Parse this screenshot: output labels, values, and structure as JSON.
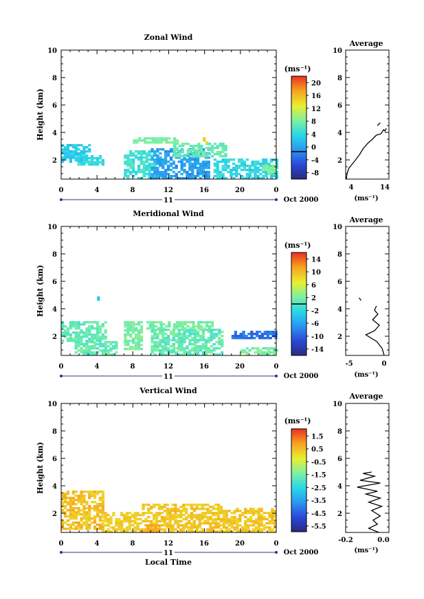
{
  "figure": {
    "date_label": "Oct 2000",
    "day_label": "11",
    "x_axis_label": "Local Time",
    "y_axis_label": "Height (km)",
    "average_title": "Average",
    "unit_label": "(ms⁻¹)",
    "x_ticks": [
      "0",
      "4",
      "8",
      "12",
      "16",
      "20",
      "0"
    ],
    "y_ticks": [
      "2",
      "4",
      "6",
      "8",
      "10"
    ]
  },
  "chart_data": [
    {
      "type": "heatmap",
      "title": "Zonal Wind",
      "xlabel": "",
      "ylabel": "Height (km)",
      "xlim": [
        0,
        24
      ],
      "ylim": [
        0.6,
        10
      ],
      "colorbar": {
        "unit": "(ms⁻¹)",
        "min": -8,
        "max": 22,
        "ticks": [
          "20",
          "16",
          "12",
          "8",
          "4",
          "0",
          "-4",
          "-8"
        ],
        "zero_line": 0
      },
      "blobs": [
        {
          "x0": 0.0,
          "x1": 3.0,
          "y0": 1.8,
          "y1": 3.0,
          "value": 4,
          "spread": 3
        },
        {
          "x0": 1.5,
          "x1": 4.5,
          "y0": 1.6,
          "y1": 2.3,
          "value": 5,
          "spread": 3
        },
        {
          "x0": 7.0,
          "x1": 10.5,
          "y0": 0.6,
          "y1": 2.6,
          "value": 6,
          "spread": 3
        },
        {
          "x0": 10.0,
          "x1": 16.5,
          "y0": 0.6,
          "y1": 2.8,
          "value": 1,
          "spread": 3
        },
        {
          "x0": 12.5,
          "x1": 18.5,
          "y0": 2.2,
          "y1": 3.2,
          "value": 8,
          "spread": 2
        },
        {
          "x0": 8.0,
          "x1": 13.0,
          "y0": 3.2,
          "y1": 3.6,
          "value": 9,
          "spread": 1
        },
        {
          "x0": 15.8,
          "x1": 16.4,
          "y0": 3.2,
          "y1": 3.6,
          "value": 15,
          "spread": 1
        },
        {
          "x0": 17.0,
          "x1": 24.0,
          "y0": 0.6,
          "y1": 2.0,
          "value": 5,
          "spread": 3
        },
        {
          "x0": 22.5,
          "x1": 24.0,
          "y0": 0.9,
          "y1": 1.6,
          "value": 9,
          "spread": 2
        }
      ],
      "average_profile": {
        "xlim": [
          2,
          15
        ],
        "x_ticks": [
          "4",
          "14"
        ],
        "points": [
          [
            2.2,
            0.6
          ],
          [
            2.4,
            1.0
          ],
          [
            3.0,
            1.4
          ],
          [
            4.0,
            1.7
          ],
          [
            5.0,
            2.0
          ],
          [
            6.2,
            2.4
          ],
          [
            7.2,
            2.8
          ],
          [
            8.6,
            3.2
          ],
          [
            10.0,
            3.5
          ],
          [
            11.2,
            3.8
          ],
          [
            12.6,
            3.9
          ],
          [
            13.4,
            4.2
          ],
          [
            13.8,
            4.1
          ],
          [
            14.2,
            4.3
          ]
        ],
        "extra": [
          [
            11.5,
            4.5
          ],
          [
            12.4,
            4.7
          ]
        ]
      }
    },
    {
      "type": "heatmap",
      "title": "Meridional Wind",
      "xlabel": "",
      "ylabel": "Height (km)",
      "xlim": [
        0,
        24
      ],
      "ylim": [
        0.6,
        10
      ],
      "colorbar": {
        "unit": "(ms⁻¹)",
        "min": -16,
        "max": 16,
        "ticks": [
          "14",
          "10",
          "6",
          "2",
          "-2",
          "-6",
          "-10",
          "-14"
        ],
        "zero_line": 0
      },
      "blobs": [
        {
          "x0": 0.0,
          "x1": 5.0,
          "y0": 1.6,
          "y1": 3.0,
          "value": 1,
          "spread": 3
        },
        {
          "x0": 1.5,
          "x1": 6.0,
          "y0": 0.6,
          "y1": 1.5,
          "value": 1,
          "spread": 3
        },
        {
          "x0": 7.0,
          "x1": 9.0,
          "y0": 1.0,
          "y1": 3.0,
          "value": 2,
          "spread": 3
        },
        {
          "x0": 10.0,
          "x1": 18.0,
          "y0": 0.6,
          "y1": 2.5,
          "value": 1,
          "spread": 4
        },
        {
          "x0": 9.5,
          "x1": 17.0,
          "y0": 2.5,
          "y1": 3.0,
          "value": 2,
          "spread": 3
        },
        {
          "x0": 19.0,
          "x1": 24.0,
          "y0": 1.8,
          "y1": 2.4,
          "value": -9,
          "spread": 3
        },
        {
          "x0": 20.0,
          "x1": 24.0,
          "y0": 0.6,
          "y1": 1.2,
          "value": 2,
          "spread": 3
        },
        {
          "x0": 4.0,
          "x1": 4.4,
          "y0": 4.6,
          "y1": 4.8,
          "value": -3,
          "spread": 1
        }
      ],
      "average_profile": {
        "xlim": [
          -8,
          1
        ],
        "x_ticks": [
          "-5",
          "0"
        ],
        "points": [
          [
            0.0,
            0.6
          ],
          [
            -0.4,
            1.1
          ],
          [
            -1.5,
            1.6
          ],
          [
            -3.8,
            2.1
          ],
          [
            -2.0,
            2.4
          ],
          [
            -1.0,
            2.8
          ],
          [
            -2.4,
            3.2
          ],
          [
            -1.3,
            3.6
          ],
          [
            -2.0,
            3.9
          ],
          [
            -1.6,
            4.2
          ]
        ],
        "extra": [
          [
            -4.8,
            4.6
          ],
          [
            -5.2,
            4.8
          ]
        ]
      }
    },
    {
      "type": "heatmap",
      "title": "Vertical Wind",
      "xlabel": "Local Time",
      "ylabel": "Height (km)",
      "xlim": [
        0,
        24
      ],
      "ylim": [
        0.6,
        10
      ],
      "colorbar": {
        "unit": "(ms⁻¹)",
        "min": -6.5,
        "max": 2,
        "ticks": [
          "1.5",
          "0.5",
          "-0.5",
          "-1.5",
          "-2.5",
          "-3.5",
          "-4.5",
          "-5.5"
        ],
        "zero_line": null
      },
      "blobs": [
        {
          "x0": 0.0,
          "x1": 4.5,
          "y0": 0.8,
          "y1": 3.6,
          "value": 0.3,
          "spread": 0.8
        },
        {
          "x0": 4.5,
          "x1": 9.0,
          "y0": 0.6,
          "y1": 2.0,
          "value": 0.1,
          "spread": 0.4
        },
        {
          "x0": 9.0,
          "x1": 18.0,
          "y0": 0.6,
          "y1": 2.6,
          "value": 0.2,
          "spread": 0.6
        },
        {
          "x0": 18.0,
          "x1": 24.0,
          "y0": 0.6,
          "y1": 2.3,
          "value": 0.2,
          "spread": 0.6
        },
        {
          "x0": 9.5,
          "x1": 11.0,
          "y0": 0.6,
          "y1": 1.2,
          "value": 0.7,
          "spread": 0.3
        }
      ],
      "average_profile": {
        "xlim": [
          -0.28,
          0.02
        ],
        "x_ticks": [
          "-0.2",
          "0.0"
        ],
        "points": [
          [
            -0.05,
            0.6
          ],
          [
            -0.12,
            0.9
          ],
          [
            -0.06,
            1.2
          ],
          [
            -0.09,
            1.5
          ],
          [
            -0.04,
            1.8
          ],
          [
            -0.1,
            2.2
          ],
          [
            -0.03,
            2.5
          ],
          [
            -0.12,
            2.8
          ],
          [
            -0.04,
            3.1
          ],
          [
            -0.14,
            3.4
          ],
          [
            -0.06,
            3.6
          ],
          [
            -0.2,
            3.9
          ],
          [
            -0.04,
            4.2
          ],
          [
            -0.18,
            4.4
          ],
          [
            -0.08,
            4.7
          ],
          [
            -0.16,
            4.9
          ],
          [
            -0.1,
            5.0
          ]
        ],
        "extra": []
      }
    }
  ]
}
